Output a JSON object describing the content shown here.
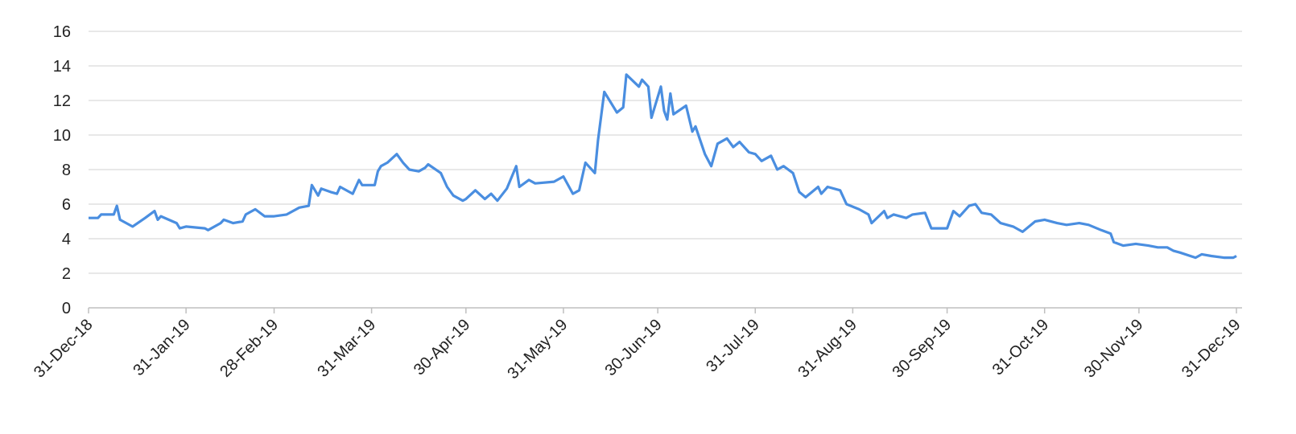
{
  "chart_data": {
    "type": "line",
    "x": [
      "31-Dec-18",
      "3-Jan-19",
      "4-Jan-19",
      "8-Jan-19",
      "9-Jan-19",
      "10-Jan-19",
      "14-Jan-19",
      "18-Jan-19",
      "21-Jan-19",
      "22-Jan-19",
      "23-Jan-19",
      "28-Jan-19",
      "29-Jan-19",
      "31-Jan-19",
      "6-Feb-19",
      "7-Feb-19",
      "11-Feb-19",
      "12-Feb-19",
      "15-Feb-19",
      "18-Feb-19",
      "19-Feb-19",
      "22-Feb-19",
      "25-Feb-19",
      "28-Feb-19",
      "4-Mar-19",
      "8-Mar-19",
      "11-Mar-19",
      "12-Mar-19",
      "14-Mar-19",
      "15-Mar-19",
      "18-Mar-19",
      "20-Mar-19",
      "21-Mar-19",
      "25-Mar-19",
      "27-Mar-19",
      "28-Mar-19",
      "1-Apr-19",
      "2-Apr-19",
      "3-Apr-19",
      "5-Apr-19",
      "8-Apr-19",
      "10-Apr-19",
      "12-Apr-19",
      "15-Apr-19",
      "17-Apr-19",
      "18-Apr-19",
      "22-Apr-19",
      "24-Apr-19",
      "26-Apr-19",
      "29-Apr-19",
      "30-Apr-19",
      "3-May-19",
      "6-May-19",
      "8-May-19",
      "10-May-19",
      "13-May-19",
      "16-May-19",
      "17-May-19",
      "20-May-19",
      "22-May-19",
      "28-May-19",
      "31-May-19",
      "3-Jun-19",
      "5-Jun-19",
      "7-Jun-19",
      "10-Jun-19",
      "11-Jun-19",
      "13-Jun-19",
      "17-Jun-19",
      "19-Jun-19",
      "20-Jun-19",
      "24-Jun-19",
      "25-Jun-19",
      "27-Jun-19",
      "28-Jun-19",
      "1-Jul-19",
      "2-Jul-19",
      "3-Jul-19",
      "4-Jul-19",
      "5-Jul-19",
      "9-Jul-19",
      "11-Jul-19",
      "12-Jul-19",
      "15-Jul-19",
      "17-Jul-19",
      "19-Jul-19",
      "22-Jul-19",
      "24-Jul-19",
      "26-Jul-19",
      "29-Jul-19",
      "31-Jul-19",
      "2-Aug-19",
      "5-Aug-19",
      "7-Aug-19",
      "9-Aug-19",
      "12-Aug-19",
      "14-Aug-19",
      "16-Aug-19",
      "20-Aug-19",
      "21-Aug-19",
      "23-Aug-19",
      "27-Aug-19",
      "29-Aug-19",
      "2-Sep-19",
      "5-Sep-19",
      "6-Sep-19",
      "10-Sep-19",
      "11-Sep-19",
      "13-Sep-19",
      "17-Sep-19",
      "19-Sep-19",
      "23-Sep-19",
      "25-Sep-19",
      "27-Sep-19",
      "30-Sep-19",
      "2-Oct-19",
      "4-Oct-19",
      "7-Oct-19",
      "9-Oct-19",
      "11-Oct-19",
      "14-Oct-19",
      "17-Oct-19",
      "21-Oct-19",
      "24-Oct-19",
      "28-Oct-19",
      "31-Oct-19",
      "4-Nov-19",
      "7-Nov-19",
      "11-Nov-19",
      "14-Nov-19",
      "18-Nov-19",
      "21-Nov-19",
      "22-Nov-19",
      "25-Nov-19",
      "29-Nov-19",
      "3-Dec-19",
      "6-Dec-19",
      "9-Dec-19",
      "11-Dec-19",
      "13-Dec-19",
      "18-Dec-19",
      "20-Dec-19",
      "23-Dec-19",
      "27-Dec-19",
      "30-Dec-19",
      "31-Dec-19"
    ],
    "series": [
      {
        "color": "#4a8ee0",
        "values": [
          5.2,
          5.2,
          5.4,
          5.4,
          5.9,
          5.1,
          4.7,
          5.2,
          5.6,
          5.1,
          5.3,
          4.9,
          4.6,
          4.7,
          4.6,
          4.5,
          4.9,
          5.1,
          4.9,
          5.0,
          5.4,
          5.7,
          5.3,
          5.3,
          5.4,
          5.8,
          5.9,
          7.1,
          6.5,
          6.9,
          6.7,
          6.6,
          7.0,
          6.6,
          7.4,
          7.1,
          7.1,
          7.9,
          8.2,
          8.4,
          8.9,
          8.4,
          8.0,
          7.9,
          8.1,
          8.3,
          7.8,
          7.0,
          6.5,
          6.2,
          6.3,
          6.8,
          6.3,
          6.6,
          6.2,
          6.9,
          8.2,
          7.0,
          7.4,
          7.2,
          7.3,
          7.6,
          6.6,
          6.8,
          8.4,
          7.8,
          9.7,
          12.5,
          11.3,
          11.6,
          13.5,
          12.8,
          13.2,
          12.8,
          11.0,
          12.8,
          11.4,
          10.9,
          12.4,
          11.2,
          11.7,
          10.2,
          10.5,
          8.9,
          8.2,
          9.5,
          9.8,
          9.3,
          9.6,
          9.0,
          8.9,
          8.5,
          8.8,
          8.0,
          8.2,
          7.8,
          6.7,
          6.4,
          7.0,
          6.6,
          7.0,
          6.8,
          6.0,
          5.7,
          5.4,
          4.9,
          5.6,
          5.2,
          5.4,
          5.2,
          5.4,
          5.5,
          4.6,
          4.6,
          4.6,
          5.6,
          5.3,
          5.9,
          6.0,
          5.5,
          5.4,
          4.9,
          4.7,
          4.4,
          5.0,
          5.1,
          4.9,
          4.8,
          4.9,
          4.8,
          4.5,
          4.3,
          3.8,
          3.6,
          3.7,
          3.6,
          3.5,
          3.5,
          3.3,
          3.2,
          2.9,
          3.1,
          3.0,
          2.9,
          2.9,
          3.0
        ]
      }
    ],
    "xlim": [
      "31-Dec-18",
      "31-Dec-19"
    ],
    "xticks": [
      "31-Dec-18",
      "31-Jan-19",
      "28-Feb-19",
      "31-Mar-19",
      "30-Apr-19",
      "31-May-19",
      "30-Jun-19",
      "31-Jul-19",
      "31-Aug-19",
      "30-Sep-19",
      "31-Oct-19",
      "30-Nov-19",
      "31-Dec-19"
    ],
    "ylim": [
      0,
      16
    ],
    "yticks": [
      0,
      2,
      4,
      6,
      8,
      10,
      12,
      14,
      16
    ],
    "grid": true
  }
}
